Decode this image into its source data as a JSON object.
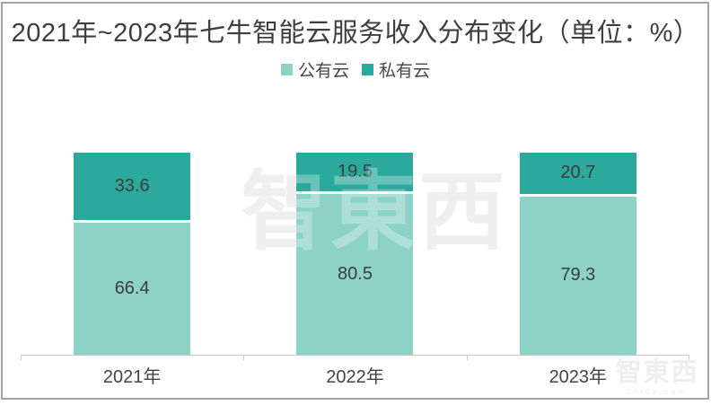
{
  "title": "2021年~2023年七牛智能云服务收入分布变化（单位：%）",
  "legend": {
    "items": [
      {
        "label": "公有云",
        "color": "#8CD2C6"
      },
      {
        "label": "私有云",
        "color": "#2AA99C"
      }
    ]
  },
  "watermark": {
    "center_text": "智東西",
    "corner_text": "智東西",
    "corner_subtext": "zhidx.com"
  },
  "chart_data": {
    "type": "bar",
    "stacked": true,
    "title": "2021年~2023年七牛智能云服务收入分布变化（单位：%）",
    "unit": "%",
    "ylim": [
      0,
      100
    ],
    "grid": false,
    "legend_position": "top",
    "categories": [
      "2021年",
      "2022年",
      "2023年"
    ],
    "series": [
      {
        "name": "公有云",
        "color": "#8CD2C6",
        "values": [
          66.4,
          80.5,
          79.3
        ]
      },
      {
        "name": "私有云",
        "color": "#2AA99C",
        "values": [
          33.6,
          19.5,
          20.7
        ]
      }
    ],
    "colors": {
      "public_cloud": "#8CD2C6",
      "private_cloud": "#2AA99C"
    }
  }
}
